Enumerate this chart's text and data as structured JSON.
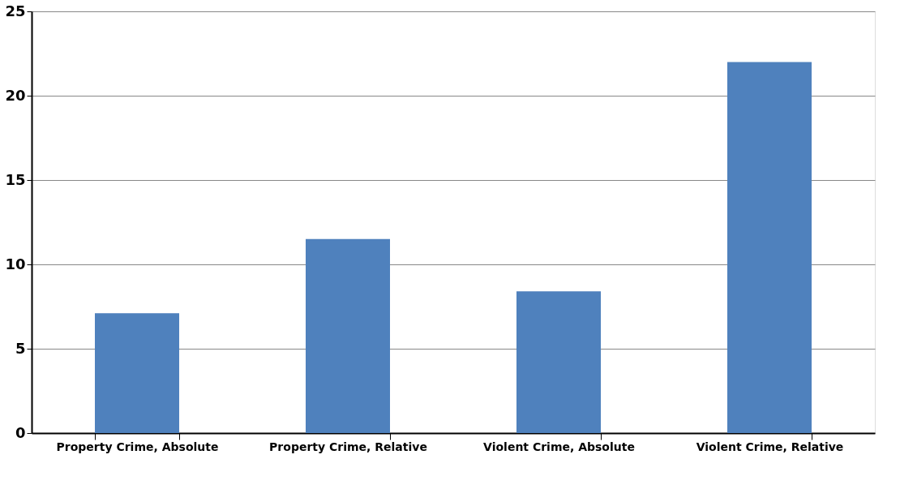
{
  "chart_data": {
    "type": "bar",
    "categories": [
      "Property Crime, Absolute",
      "Property Crime, Relative",
      "Violent Crime, Absolute",
      "Violent Crime, Relative"
    ],
    "values": [
      7.1,
      11.5,
      8.4,
      22.0
    ],
    "color": "#4f81bd",
    "ylim": [
      0,
      25
    ],
    "yticks": [
      0,
      5,
      10,
      15,
      20,
      25
    ],
    "grid": "y"
  }
}
